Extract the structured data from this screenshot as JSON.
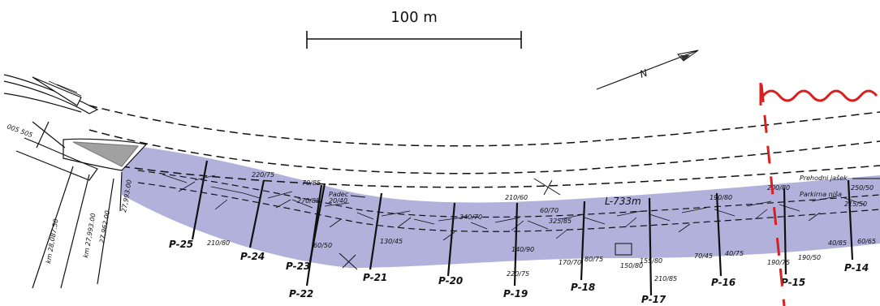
{
  "scale_bar": {
    "label": "100 m"
  },
  "tunnel_length": "L-733m",
  "stationing": [
    "27,962.00",
    "27,993.00",
    "km 27,993.00",
    "km 28,087.50",
    "005 505"
  ],
  "notes": {
    "prehodni": "Prehodni jašek",
    "parkirna": "Parkirna niša",
    "padec": "Padec"
  },
  "profiles": [
    "P-25",
    "P-24",
    "P-23",
    "P-22",
    "P-21",
    "P-20",
    "P-19",
    "P-18",
    "P-17",
    "P-16",
    "P-15",
    "P-14"
  ],
  "orientations": [
    "210/80",
    "220/75",
    "70/85",
    "270/85",
    "20/40",
    "60/50",
    "130/45",
    "210/60",
    "340/70",
    "60/70",
    "325/85",
    "140/90",
    "220/75",
    "170/70",
    "80/75",
    "150/80",
    "155/80",
    "210/85",
    "190/80",
    "70/45",
    "40/75",
    "200/80",
    "190/75",
    "190/50",
    "40/85",
    "60/65",
    "250/50",
    "215/50"
  ],
  "north_symbol": "N",
  "colors": {
    "tunnel_band": "#a9a8d8",
    "fault_red": "#d9201f",
    "ink": "#111111"
  }
}
